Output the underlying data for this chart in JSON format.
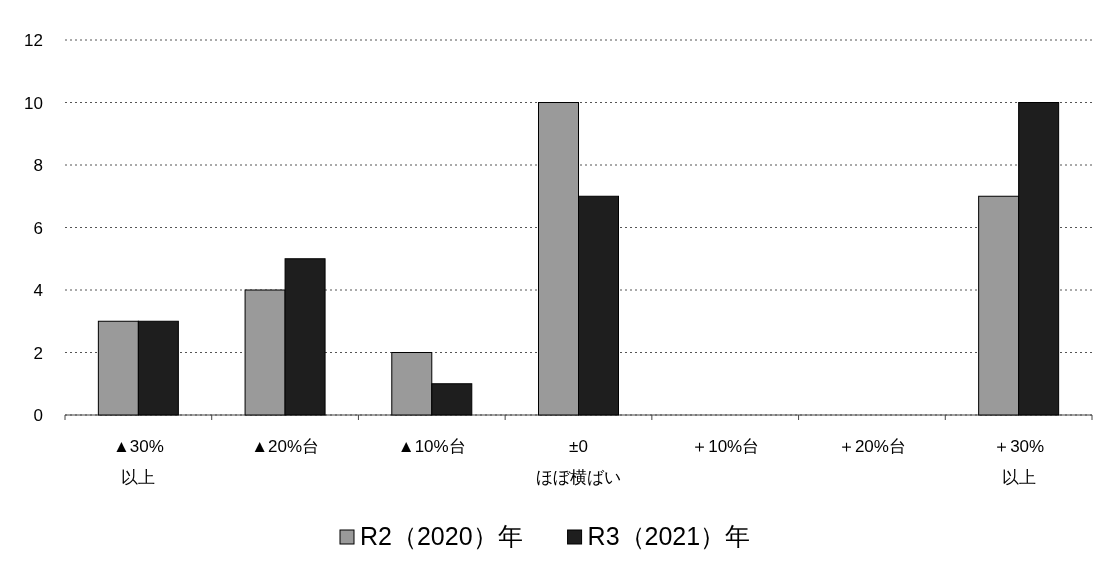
{
  "chart_data": {
    "type": "bar",
    "categories": [
      "▲30%\n以上",
      "▲20%台",
      "▲10%台",
      "±0\nほぼ横ばい",
      "＋10%台",
      "＋20%台",
      "＋30%\n以上"
    ],
    "series": [
      {
        "name": "R2（2020）年",
        "color": "#9a9a9a",
        "values": [
          3,
          4,
          2,
          10,
          0,
          0,
          7
        ]
      },
      {
        "name": "R3（2021）年",
        "color": "#1e1e1e",
        "values": [
          3,
          5,
          1,
          7,
          0,
          0,
          10
        ]
      }
    ],
    "ylim": [
      0,
      12
    ],
    "yticks": [
      0,
      2,
      4,
      6,
      8,
      10,
      12
    ],
    "grid": "y",
    "legend": "bottom"
  }
}
